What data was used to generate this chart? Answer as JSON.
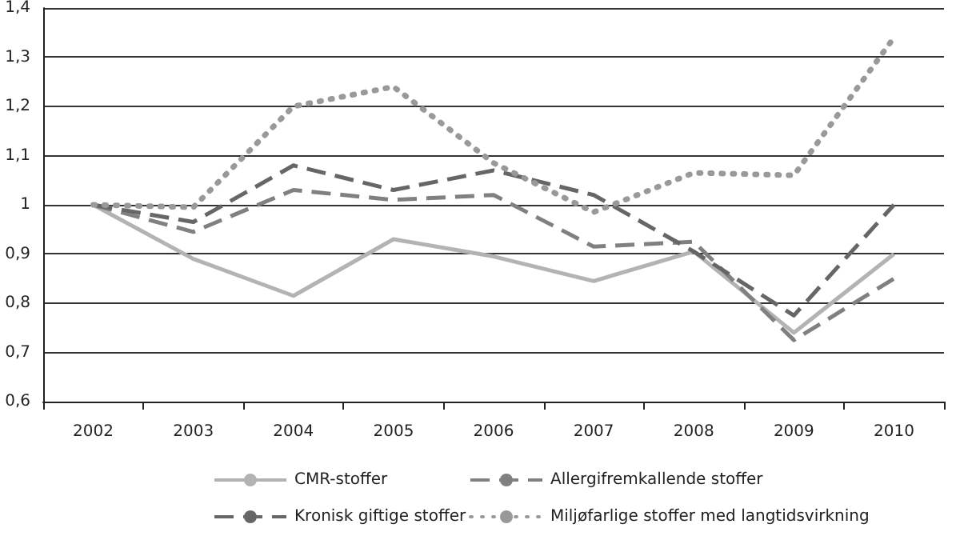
{
  "chart_data": {
    "type": "line",
    "categories": [
      "2002",
      "2003",
      "2004",
      "2005",
      "2006",
      "2007",
      "2008",
      "2009",
      "2010"
    ],
    "series": [
      {
        "name": "CMR-stoffer",
        "color": "#b3b3b3",
        "line_style": "solid",
        "values": [
          1,
          0.89,
          0.815,
          0.93,
          0.895,
          0.845,
          0.905,
          0.74,
          0.9
        ]
      },
      {
        "name": "Allergifremkallende stoffer",
        "color": "#808080",
        "line_style": "dashed",
        "values": [
          1,
          0.945,
          1.03,
          1.01,
          1.02,
          0.915,
          0.925,
          0.725,
          0.85
        ]
      },
      {
        "name": "Kronisk giftige stoffer",
        "color": "#666666",
        "line_style": "dashed",
        "values": [
          1,
          0.965,
          1.08,
          1.03,
          1.07,
          1.02,
          0.905,
          0.775,
          1.0
        ]
      },
      {
        "name": "Miljøfarlige stoffer med langtidsvirkning",
        "color": "#999999",
        "line_style": "dotted",
        "values": [
          1,
          0.995,
          1.2,
          1.24,
          1.085,
          0.985,
          1.065,
          1.06,
          1.34
        ]
      }
    ],
    "ylim": [
      0.6,
      1.4
    ],
    "yticks": [
      {
        "value": 0.6,
        "label": "0,6"
      },
      {
        "value": 0.7,
        "label": "0,7"
      },
      {
        "value": 0.8,
        "label": "0,8"
      },
      {
        "value": 0.9,
        "label": "0,9"
      },
      {
        "value": 1,
        "label": "1"
      },
      {
        "value": 1.1,
        "label": "1,1"
      },
      {
        "value": 1.2,
        "label": "1,2"
      },
      {
        "value": 1.3,
        "label": "1,3"
      },
      {
        "value": 1.4,
        "label": "1,4"
      }
    ],
    "grid": "y",
    "legend": "bottom",
    "marker": "none"
  }
}
